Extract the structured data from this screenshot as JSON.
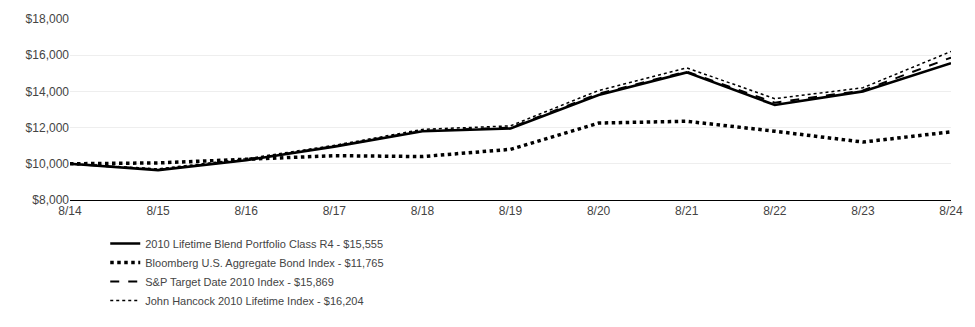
{
  "chart_data": {
    "type": "line",
    "categories": [
      "8/14",
      "8/15",
      "8/16",
      "8/17",
      "8/18",
      "8/19",
      "8/20",
      "8/21",
      "8/22",
      "8/23",
      "8/24"
    ],
    "series": [
      {
        "name": "2010 Lifetime Blend Portfolio Class R4 - $15,555",
        "color": "#000000",
        "line_style": "solid",
        "values": [
          10000,
          9650,
          10200,
          10950,
          11800,
          11950,
          13800,
          15050,
          13250,
          14000,
          15555
        ]
      },
      {
        "name": "Bloomberg U.S. Aggregate Bond Index - $11,765",
        "color": "#000000",
        "line_style": "dotted",
        "values": [
          10000,
          10050,
          10250,
          10450,
          10400,
          10800,
          12250,
          12350,
          11800,
          11200,
          11765
        ]
      },
      {
        "name": "S&P Target Date 2010 Index - $15,869",
        "color": "#000000",
        "line_style": "dashed",
        "values": [
          10000,
          9680,
          10220,
          10970,
          11820,
          12000,
          13870,
          15100,
          13380,
          14050,
          15869
        ]
      },
      {
        "name": "John Hancock 2010 Lifetime Index - $16,204",
        "color": "#000000",
        "line_style": "dotted",
        "values": [
          10000,
          9720,
          10280,
          11020,
          11900,
          12100,
          14050,
          15300,
          13600,
          14200,
          16204
        ]
      }
    ],
    "ylim": [
      8000,
      18000
    ],
    "yticks": [
      {
        "value": 8000,
        "label": "$8,000"
      },
      {
        "value": 10000,
        "label": "$10,000"
      },
      {
        "value": 12000,
        "label": "$12,000"
      },
      {
        "value": 14000,
        "label": "$14,000"
      },
      {
        "value": 16000,
        "label": "$16,000"
      },
      {
        "value": 18000,
        "label": "$18,000"
      }
    ],
    "grid": true,
    "legend": "bottom"
  }
}
